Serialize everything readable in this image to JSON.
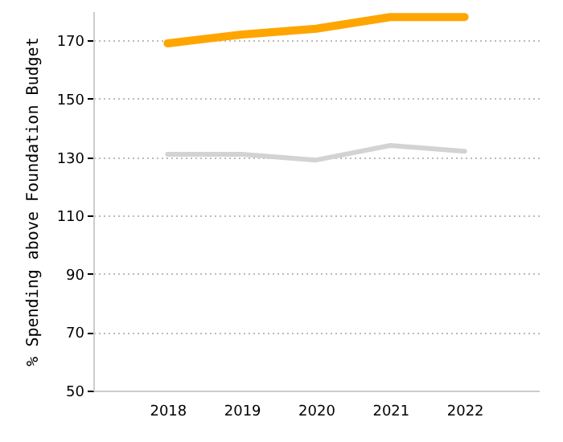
{
  "chart_data": {
    "type": "line",
    "ylabel": "% Spending above Foundation Budget",
    "categories": [
      "2018",
      "2019",
      "2020",
      "2021",
      "2022"
    ],
    "series": [
      {
        "color": "#ffa500",
        "values": [
          169,
          172,
          174,
          178,
          178
        ]
      },
      {
        "color": "#d3d3d3",
        "values": [
          131,
          131,
          129,
          134,
          132
        ]
      }
    ],
    "ylim": [
      50,
      180
    ],
    "yticks": [
      50,
      70,
      90,
      110,
      130,
      150,
      170
    ],
    "grid": "y",
    "marker": "none",
    "line_style": "solid"
  }
}
